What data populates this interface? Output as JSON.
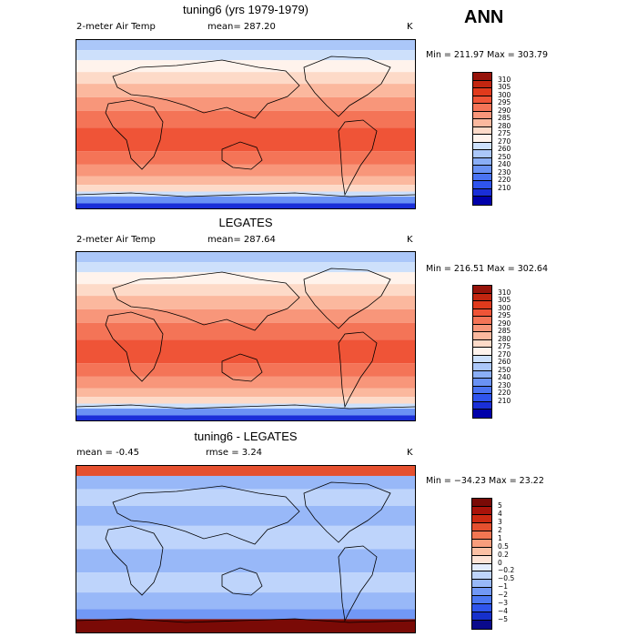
{
  "season": "ANN",
  "palettes": {
    "abs": [
      "#0000aa",
      "#1a2fd8",
      "#2f54ee",
      "#4a73f2",
      "#6a92f4",
      "#8aaef6",
      "#abc7f9",
      "#cde0fb",
      "#fff3ec",
      "#fddac8",
      "#fbb89e",
      "#f8967a",
      "#f47457",
      "#ef5437",
      "#e03a1c",
      "#c22610",
      "#96130a"
    ],
    "diff": [
      "#0a0a8c",
      "#1630cc",
      "#2f55ec",
      "#4c78f2",
      "#7198f5",
      "#98b8f8",
      "#bed4fb",
      "#e3ecfd",
      "#fde3d6",
      "#fbc0a4",
      "#f89d7c",
      "#f27652",
      "#e5502f",
      "#cc2a12",
      "#a9130a",
      "#7a0a06"
    ],
    "land_line": "#000000"
  },
  "panels": [
    {
      "id": "model",
      "title": "tuning6 (yrs 1979-1979)",
      "left_label": "2-meter Air Temp",
      "center_label": "mean= 287.20",
      "right_label": "K",
      "stats": "Min = 211.97 Max = 303.79",
      "kind": "abs",
      "levels": [
        "310",
        "305",
        "300",
        "295",
        "290",
        "285",
        "280",
        "275",
        "270",
        "260",
        "250",
        "240",
        "230",
        "220",
        "210"
      ]
    },
    {
      "id": "obs",
      "title": "LEGATES",
      "left_label": "2-meter Air Temp",
      "center_label": "mean= 287.64",
      "right_label": "K",
      "stats": "Min = 216.51 Max = 302.64",
      "kind": "abs",
      "levels": [
        "310",
        "305",
        "300",
        "295",
        "290",
        "285",
        "280",
        "275",
        "270",
        "260",
        "250",
        "240",
        "230",
        "220",
        "210"
      ]
    },
    {
      "id": "diff",
      "title": "tuning6 - LEGATES",
      "left_label": "mean =   -0.45",
      "center_label": "rmse =    3.24",
      "right_label": "K",
      "stats": "Min = −34.23 Max =  23.22",
      "kind": "diff",
      "levels": [
        "5",
        "4",
        "3",
        "2",
        "1",
        "0.5",
        "0.2",
        "0",
        "−0.2",
        "−0.5",
        "−1",
        "−2",
        "−3",
        "−4",
        "−5"
      ]
    }
  ],
  "chart_data": [
    {
      "type": "heatmap",
      "title": "tuning6 (yrs 1979-1979)",
      "variable": "2-meter Air Temp",
      "units": "K",
      "mean": 287.2,
      "min": 211.97,
      "max": 303.79,
      "contour_levels": [
        210,
        220,
        230,
        240,
        250,
        260,
        270,
        275,
        280,
        285,
        290,
        295,
        300,
        305,
        310
      ]
    },
    {
      "type": "heatmap",
      "title": "LEGATES",
      "variable": "2-meter Air Temp",
      "units": "K",
      "mean": 287.64,
      "min": 216.51,
      "max": 302.64,
      "contour_levels": [
        210,
        220,
        230,
        240,
        250,
        260,
        270,
        275,
        280,
        285,
        290,
        295,
        300,
        305,
        310
      ]
    },
    {
      "type": "heatmap",
      "title": "tuning6 - LEGATES",
      "units": "K",
      "mean": -0.45,
      "rmse": 3.24,
      "min": -34.23,
      "max": 23.22,
      "contour_levels": [
        -5,
        -4,
        -3,
        -2,
        -1,
        -0.5,
        -0.2,
        0,
        0.2,
        0.5,
        1,
        2,
        3,
        4,
        5
      ]
    }
  ]
}
